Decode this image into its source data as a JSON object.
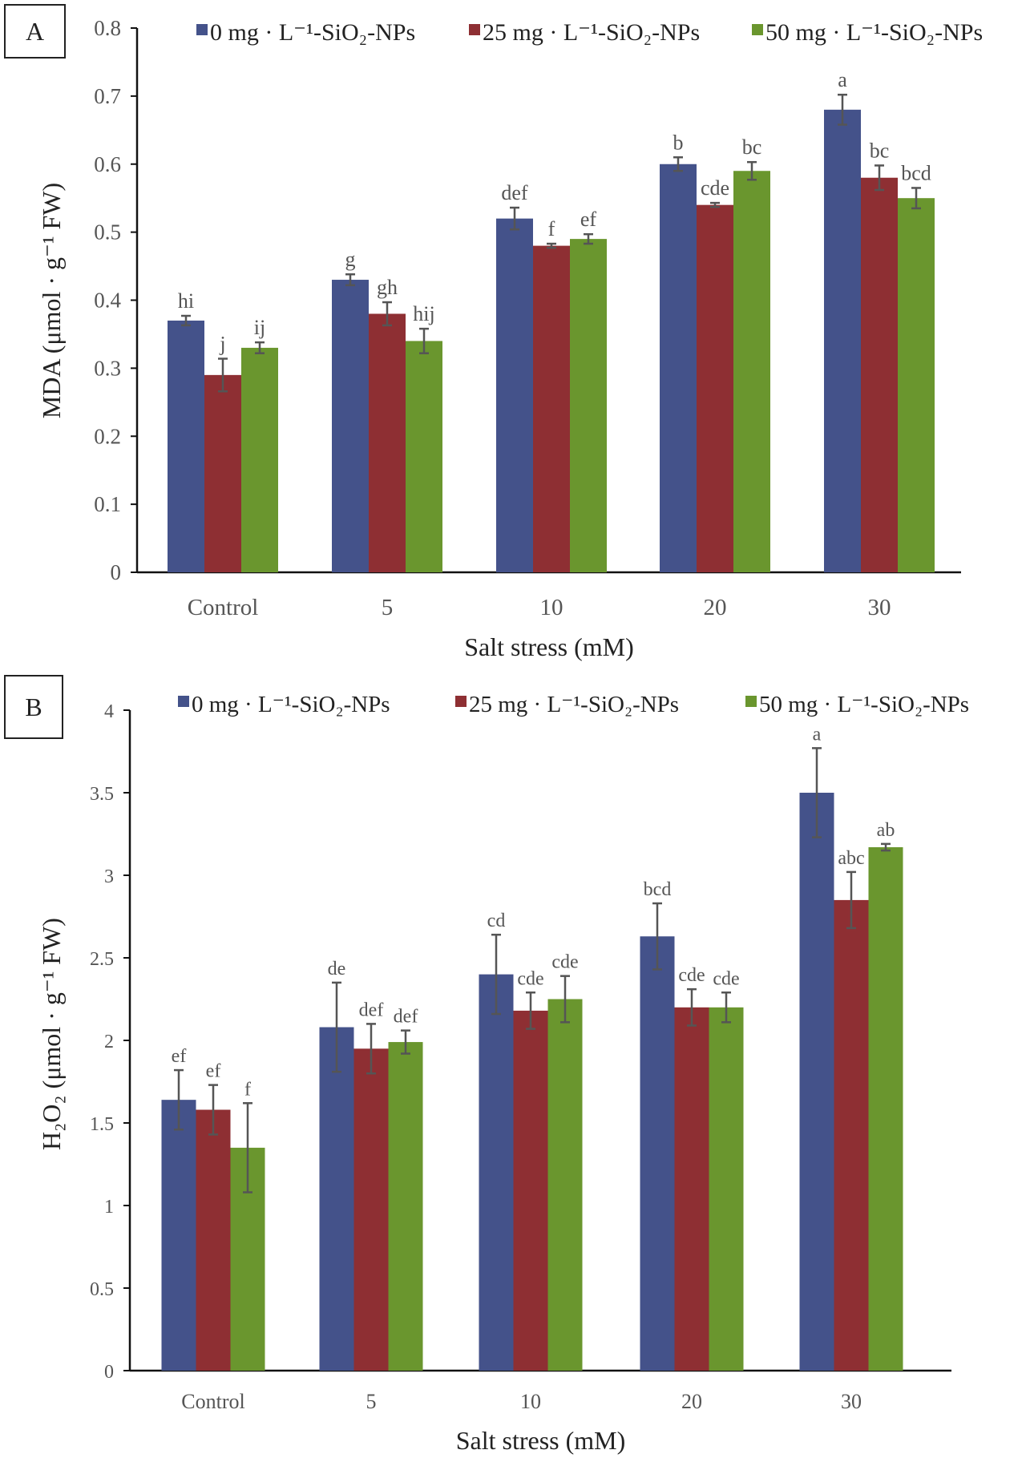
{
  "chart_data": [
    {
      "type": "bar",
      "panel_label": "A",
      "categories": [
        "Control",
        "5",
        "10",
        "20",
        "30"
      ],
      "xlabel": "Salt stress (mM)",
      "ylabel": "MDA (μmol · g⁻¹ FW)",
      "ylim": [
        0,
        0.8
      ],
      "yticks": [
        "0",
        "0.1",
        "0.2",
        "0.3",
        "0.4",
        "0.5",
        "0.6",
        "0.7",
        "0.8"
      ],
      "grid": false,
      "legend_position": "top",
      "series": [
        {
          "name": "0 mg · L⁻¹-SiO₂-NPs",
          "color": "#44528a",
          "values": [
            0.37,
            0.43,
            0.52,
            0.6,
            0.68
          ],
          "errors": [
            0.007,
            0.008,
            0.016,
            0.01,
            0.022
          ],
          "letters": [
            "hi",
            "g",
            "def",
            "b",
            "a"
          ]
        },
        {
          "name": "25 mg · L⁻¹-SiO₂-NPs",
          "color": "#8e2f33",
          "values": [
            0.29,
            0.38,
            0.48,
            0.54,
            0.58
          ],
          "errors": [
            0.024,
            0.017,
            0.003,
            0.003,
            0.018
          ],
          "letters": [
            "j",
            "gh",
            "f",
            "cde",
            "bc"
          ]
        },
        {
          "name": "50 mg · L⁻¹-SiO₂-NPs",
          "color": "#6a962e",
          "values": [
            0.33,
            0.34,
            0.49,
            0.59,
            0.55
          ],
          "errors": [
            0.008,
            0.018,
            0.007,
            0.013,
            0.015
          ],
          "letters": [
            "ij",
            "hij",
            "ef",
            "bc",
            "bcd"
          ]
        }
      ]
    },
    {
      "type": "bar",
      "panel_label": "B",
      "categories": [
        "Control",
        "5",
        "10",
        "20",
        "30"
      ],
      "xlabel": "Salt stress (mM)",
      "ylabel": "H₂O₂ (μmol · g⁻¹ FW)",
      "ylim": [
        0,
        4
      ],
      "yticks": [
        "0",
        "0.5",
        "1",
        "1.5",
        "2",
        "2.5",
        "3",
        "3.5",
        "4"
      ],
      "grid": false,
      "legend_position": "top",
      "series": [
        {
          "name": "0 mg · L⁻¹-SiO₂-NPs",
          "color": "#44528a",
          "values": [
            1.64,
            2.08,
            2.4,
            2.63,
            3.5
          ],
          "errors": [
            0.18,
            0.27,
            0.24,
            0.2,
            0.27
          ],
          "letters": [
            "ef",
            "de",
            "cd",
            "bcd",
            "a"
          ]
        },
        {
          "name": "25 mg · L⁻¹-SiO₂-NPs",
          "color": "#8e2f33",
          "values": [
            1.58,
            1.95,
            2.18,
            2.2,
            2.85
          ],
          "errors": [
            0.15,
            0.15,
            0.11,
            0.11,
            0.17
          ],
          "letters": [
            "ef",
            "def",
            "cde",
            "cde",
            "abc"
          ]
        },
        {
          "name": "50 mg · L⁻¹-SiO₂-NPs",
          "color": "#6a962e",
          "values": [
            1.35,
            1.99,
            2.25,
            2.2,
            3.17
          ],
          "errors": [
            0.27,
            0.07,
            0.14,
            0.09,
            0.02
          ],
          "letters": [
            "f",
            "def",
            "cde",
            "cde",
            "ab"
          ]
        }
      ]
    }
  ]
}
